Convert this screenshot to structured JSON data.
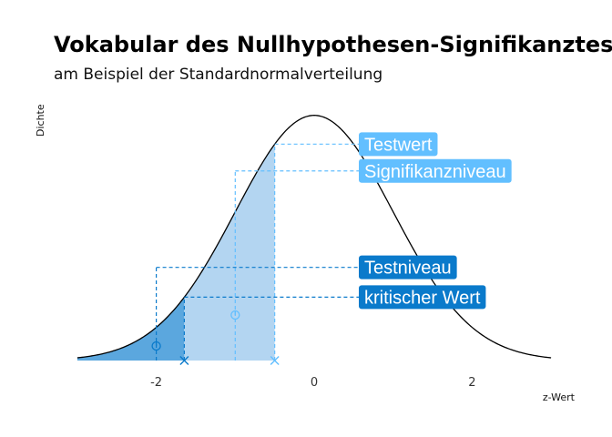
{
  "chart_data": {
    "type": "area",
    "title": "Vokabular des Nullhypothesen-Signifikanztests",
    "subtitle": "am Beispiel der Standardnormalverteilung",
    "xlabel": "z-Wert",
    "ylabel": "Dichte",
    "xlim": [
      -3,
      3
    ],
    "x_ticks": [
      -2,
      0,
      2
    ],
    "x_tick_labels": [
      "-2",
      "0",
      "2"
    ],
    "grid": false,
    "curve": "standard normal density",
    "shaded_regions": [
      {
        "from": -3,
        "to": -1.645,
        "color": "#5ba7de"
      },
      {
        "from": -1.645,
        "to": -0.5,
        "color": "#b3d5f1"
      }
    ],
    "annotations": [
      {
        "label": "Testwert",
        "x": -0.5,
        "y": 0.3521,
        "marker": "x",
        "color": "#62bfff"
      },
      {
        "label": "Signifikanzniveau",
        "x": -1.0,
        "y": 0.3085,
        "marker": "circle",
        "color": "#62bfff"
      },
      {
        "label": "Testniveau",
        "x": -2.0,
        "y": 0.1516,
        "marker": "circle",
        "color": "#0a7acb"
      },
      {
        "label": "kritischer Wert",
        "x": -1.645,
        "y": 0.1031,
        "marker": "x",
        "color": "#0a7acb"
      }
    ]
  },
  "colors": {
    "dark_region": "#5ba7de",
    "light_region": "#b3d5f1",
    "light_label": "#62bfff",
    "dark_label": "#0a7acb"
  }
}
